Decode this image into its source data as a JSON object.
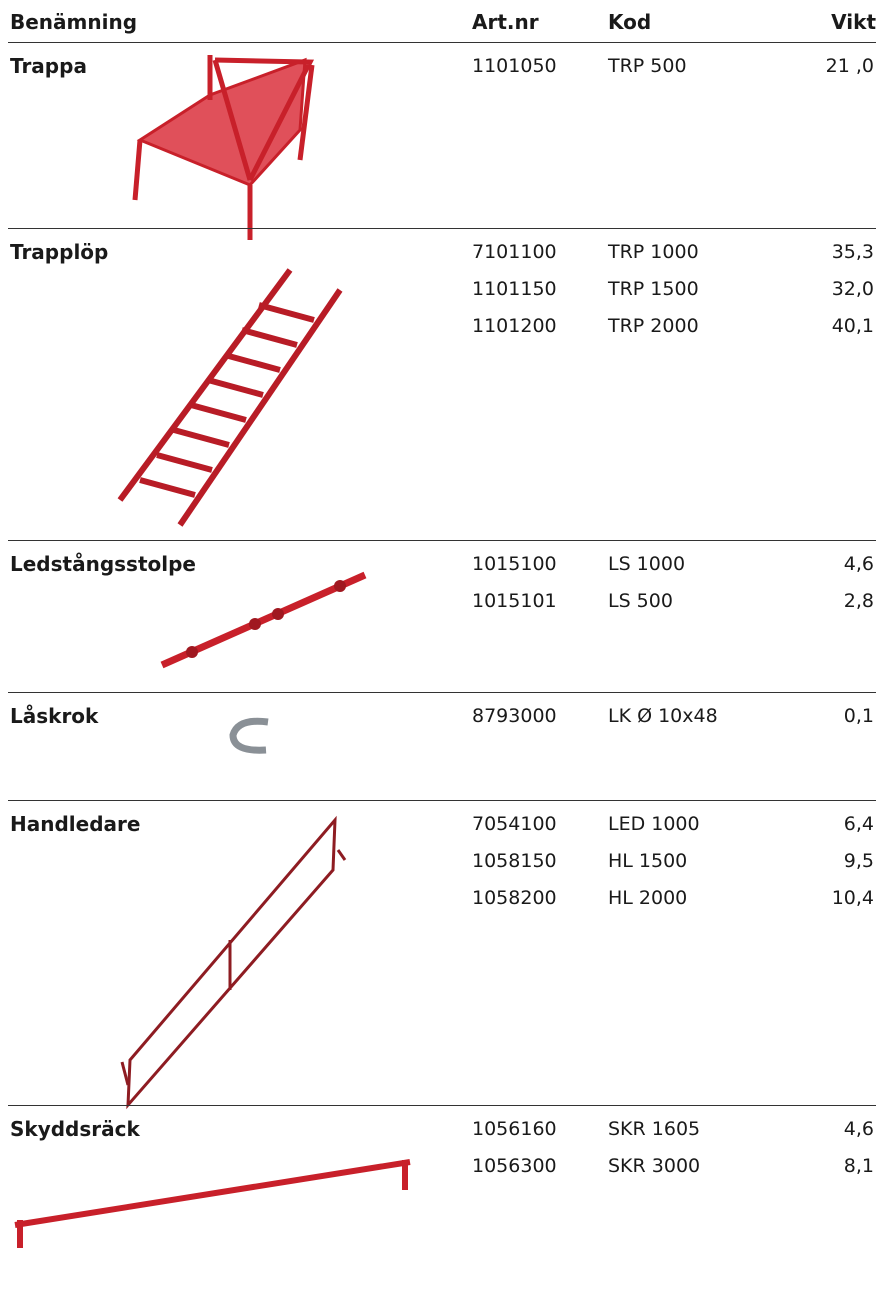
{
  "header": {
    "name": "Benämning",
    "artnr": "Art.nr",
    "kod": "Kod",
    "vikt": "Vikt"
  },
  "sections": [
    {
      "name": "Trappa",
      "rows": [
        [
          "1101050",
          "TRP 500",
          "21 ,0"
        ]
      ]
    },
    {
      "name": "Trapplöp",
      "rows": [
        [
          "7101100",
          "TRP 1000",
          "35,3"
        ],
        [
          "1101150",
          "TRP 1500",
          "32,0"
        ],
        [
          "1101200",
          "TRP 2000",
          "40,1"
        ]
      ]
    },
    {
      "name": "Ledstångsstolpe",
      "rows": [
        [
          "1015100",
          "LS 1000",
          "4,6"
        ],
        [
          "1015101",
          "LS 500",
          "2,8"
        ]
      ]
    },
    {
      "name": "Låskrok",
      "rows": [
        [
          "8793000",
          "LK Ø 10x48",
          "0,1"
        ]
      ]
    },
    {
      "name": "Handledare",
      "rows": [
        [
          "7054100",
          "LED 1000",
          "6,4"
        ],
        [
          "1058150",
          "HL 1500",
          "9,5"
        ],
        [
          "1058200",
          "HL 2000",
          "10,4"
        ]
      ]
    },
    {
      "name": "Skyddsräck",
      "rows": [
        [
          "1056160",
          "SKR 1605",
          "4,6"
        ],
        [
          "1056300",
          "SKR 3000",
          "8,1"
        ]
      ]
    }
  ]
}
